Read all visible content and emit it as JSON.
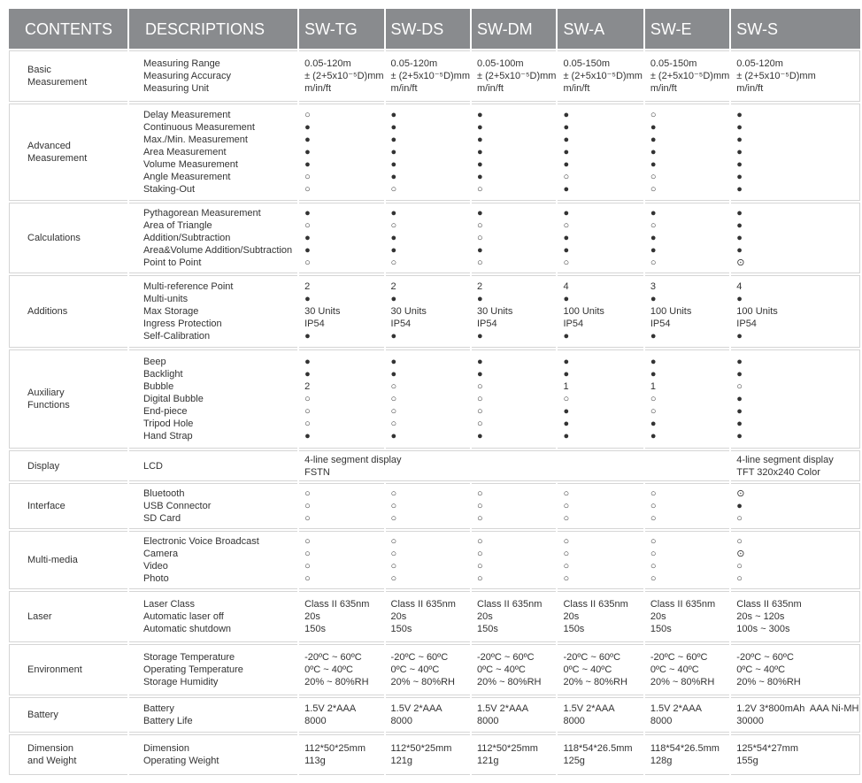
{
  "header": {
    "columns": [
      "CONTENTS",
      "DESCRIPTIONS",
      "SW-TG",
      "SW-DS",
      "SW-DM",
      "SW-A",
      "SW-E",
      "SW-S"
    ]
  },
  "sections": [
    {
      "label": [
        "Basic",
        "Measurement"
      ],
      "descriptions": [
        "Measuring Range",
        "Measuring Accuracy",
        "Measuring Unit"
      ],
      "values": [
        [
          "0.05-120m",
          "± (2+5x10⁻⁵D)mm",
          "m/in/ft"
        ],
        [
          "0.05-120m",
          "± (2+5x10⁻⁵D)mm",
          "m/in/ft"
        ],
        [
          "0.05-100m",
          "± (2+5x10⁻⁵D)mm",
          "m/in/ft"
        ],
        [
          "0.05-150m",
          "± (2+5x10⁻⁵D)mm",
          "m/in/ft"
        ],
        [
          "0.05-150m",
          "± (2+5x10⁻⁵D)mm",
          "m/in/ft"
        ],
        [
          "0.05-120m",
          "± (2+5x10⁻⁵D)mm",
          "m/in/ft"
        ]
      ]
    },
    {
      "label": [
        "Advanced",
        "Measurement"
      ],
      "descriptions": [
        "Delay Measurement",
        "Continuous Measurement",
        "Max./Min. Measurement",
        "Area Measurement",
        "Volume Measurement",
        "Angle Measurement",
        "Staking-Out"
      ],
      "values": [
        [
          "○",
          "●",
          "●",
          "●",
          "●",
          "○",
          "○"
        ],
        [
          "●",
          "●",
          "●",
          "●",
          "●",
          "●",
          "○"
        ],
        [
          "●",
          "●",
          "●",
          "●",
          "●",
          "●",
          "○"
        ],
        [
          "●",
          "●",
          "●",
          "●",
          "●",
          "○",
          "●"
        ],
        [
          "○",
          "●",
          "●",
          "●",
          "●",
          "○",
          "○"
        ],
        [
          "●",
          "●",
          "●",
          "●",
          "●",
          "●",
          "●"
        ]
      ]
    },
    {
      "label": [
        "Calculations"
      ],
      "descriptions": [
        "Pythagorean Measurement",
        "Area of Triangle",
        "Addition/Subtraction",
        "Area&Volume Addition/Subtraction",
        "Point to Point"
      ],
      "values": [
        [
          "●",
          "○",
          "●",
          "●",
          "○"
        ],
        [
          "●",
          "○",
          "●",
          "●",
          "○"
        ],
        [
          "●",
          "○",
          "○",
          "●",
          "○"
        ],
        [
          "●",
          "○",
          "●",
          "●",
          "○"
        ],
        [
          "●",
          "○",
          "●",
          "●",
          "○"
        ],
        [
          "●",
          "●",
          "●",
          "●",
          "⊙"
        ]
      ]
    },
    {
      "label": [
        "Additions"
      ],
      "descriptions": [
        "Multi-reference Point",
        "Multi-units",
        "Max Storage",
        "Ingress Protection",
        "Self-Calibration"
      ],
      "values": [
        [
          "2",
          "●",
          "30 Units",
          "IP54",
          "●"
        ],
        [
          "2",
          "●",
          "30 Units",
          "IP54",
          "●"
        ],
        [
          "2",
          "●",
          "30 Units",
          "IP54",
          "●"
        ],
        [
          "4",
          "●",
          "100 Units",
          "IP54",
          "●"
        ],
        [
          "3",
          "●",
          "100 Units",
          "IP54",
          "●"
        ],
        [
          "4",
          "●",
          "100 Units",
          "IP54",
          "●"
        ]
      ]
    },
    {
      "label": [
        "Auxiliary",
        "Functions"
      ],
      "descriptions": [
        "Beep",
        "Backlight",
        "Bubble",
        "Digital Bubble",
        "End-piece",
        "Tripod Hole",
        "Hand Strap"
      ],
      "values": [
        [
          "●",
          "●",
          "2",
          "○",
          "○",
          "○",
          "●"
        ],
        [
          "●",
          "●",
          "○",
          "○",
          "○",
          "○",
          "●"
        ],
        [
          "●",
          "●",
          "○",
          "○",
          "○",
          "○",
          "●"
        ],
        [
          "●",
          "●",
          "1",
          "○",
          "●",
          "●",
          "●"
        ],
        [
          "●",
          "●",
          "1",
          "○",
          "○",
          "●",
          "●"
        ],
        [
          "●",
          "●",
          "○",
          "●",
          "●",
          "●",
          "●"
        ]
      ]
    },
    {
      "label": [
        "Display"
      ],
      "descriptions": [
        "LCD"
      ],
      "values": [
        [
          "4-line segment display",
          "FSTN"
        ],
        [
          "4-line segment display",
          "TFT 320x240 Color"
        ]
      ]
    },
    {
      "label": [
        "Interface"
      ],
      "descriptions": [
        "Bluetooth",
        "USB Connector",
        "SD Card"
      ],
      "values": [
        [
          "○",
          "○",
          "○"
        ],
        [
          "○",
          "○",
          "○"
        ],
        [
          "○",
          "○",
          "○"
        ],
        [
          "○",
          "○",
          "○"
        ],
        [
          "○",
          "○",
          "○"
        ],
        [
          "⊙",
          "●",
          "○"
        ]
      ]
    },
    {
      "label": [
        "Multi-media"
      ],
      "descriptions": [
        "Electronic Voice Broadcast",
        "Camera",
        "Video",
        "Photo"
      ],
      "values": [
        [
          "○",
          "○",
          "○",
          "○"
        ],
        [
          "○",
          "○",
          "○",
          "○"
        ],
        [
          "○",
          "○",
          "○",
          "○"
        ],
        [
          "○",
          "○",
          "○",
          "○"
        ],
        [
          "○",
          "○",
          "○",
          "○"
        ],
        [
          "○",
          "⊙",
          "○",
          "○"
        ]
      ]
    },
    {
      "label": [
        "Laser"
      ],
      "descriptions": [
        "Laser Class",
        "Automatic laser off",
        "Automatic shutdown"
      ],
      "values": [
        [
          "Class II 635nm",
          "20s",
          "150s"
        ],
        [
          "Class II 635nm",
          "20s",
          "150s"
        ],
        [
          "Class II 635nm",
          "20s",
          "150s"
        ],
        [
          "Class II 635nm",
          "20s",
          "150s"
        ],
        [
          "Class II 635nm",
          "20s",
          "150s"
        ],
        [
          "Class II 635nm",
          "20s ~ 120s",
          "100s ~ 300s"
        ]
      ]
    },
    {
      "label": [
        "Environment"
      ],
      "descriptions": [
        "Storage Temperature",
        "Operating Temperature",
        "Storage Humidity"
      ],
      "values": [
        [
          "-20ºC ~ 60ºC",
          "0ºC ~ 40ºC",
          "20% ~ 80%RH"
        ],
        [
          "-20ºC ~ 60ºC",
          "0ºC ~ 40ºC",
          "20% ~ 80%RH"
        ],
        [
          "-20ºC ~ 60ºC",
          "0ºC ~ 40ºC",
          "20% ~ 80%RH"
        ],
        [
          "-20ºC ~ 60ºC",
          "0ºC ~ 40ºC",
          "20% ~ 80%RH"
        ],
        [
          "-20ºC ~ 60ºC",
          "0ºC ~ 40ºC",
          "20% ~ 80%RH"
        ],
        [
          "-20ºC ~ 60ºC",
          "0ºC ~ 40ºC",
          "20% ~ 80%RH"
        ]
      ]
    },
    {
      "label": [
        "Battery"
      ],
      "descriptions": [
        "Battery",
        "Battery Life"
      ],
      "values": [
        [
          "1.5V 2*AAA",
          "8000"
        ],
        [
          "1.5V 2*AAA",
          "8000"
        ],
        [
          "1.5V 2*AAA",
          "8000"
        ],
        [
          "1.5V 2*AAA",
          "8000"
        ],
        [
          "1.5V 2*AAA",
          "8000"
        ],
        [
          "1.2V 3*800mAh  AAA Ni-MH",
          "30000"
        ]
      ]
    },
    {
      "label": [
        "Dimension",
        "and Weight"
      ],
      "descriptions": [
        "Dimension",
        "Operating Weight"
      ],
      "values": [
        [
          "112*50*25mm",
          "113g"
        ],
        [
          "112*50*25mm",
          "121g"
        ],
        [
          "112*50*25mm",
          "121g"
        ],
        [
          "118*54*26.5mm",
          "125g"
        ],
        [
          "118*54*26.5mm",
          "128g"
        ],
        [
          "125*54*27mm",
          "155g"
        ]
      ]
    }
  ]
}
